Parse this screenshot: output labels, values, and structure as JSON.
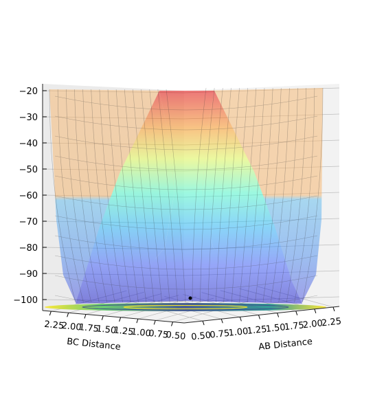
{
  "chart_data": {
    "type": "surface3d",
    "title": "",
    "xlabel": "AB Distance",
    "ylabel": "BC Distance",
    "zlabel": "",
    "x_ticks": [
      "0.50",
      "0.75",
      "1.00",
      "1.25",
      "1.50",
      "1.75",
      "2.00",
      "2.25"
    ],
    "y_ticks": [
      "2.25",
      "2.00",
      "1.75",
      "1.50",
      "1.25",
      "1.00",
      "0.75",
      "0.50"
    ],
    "z_ticks": [
      "−20",
      "−30",
      "−40",
      "−50",
      "−60",
      "−70",
      "−80",
      "−90",
      "−100"
    ],
    "x_range": [
      0.5,
      2.25
    ],
    "y_range": [
      0.5,
      2.25
    ],
    "z_range": [
      -105,
      -20
    ],
    "colormap": "jet",
    "surface_alpha": 0.35,
    "contour_colormap": "viridis",
    "minimum_marker": {
      "x": 0.74,
      "y": 0.74,
      "z": -101
    },
    "grid": true,
    "legend": "none"
  }
}
